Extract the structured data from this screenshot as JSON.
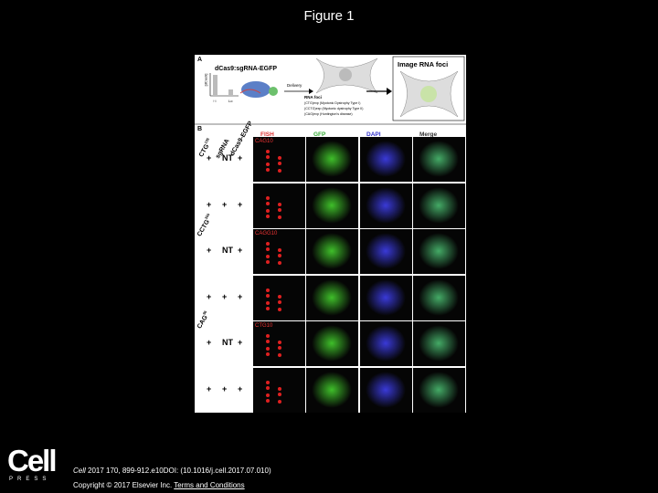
{
  "header": {
    "title": "Figure 1"
  },
  "figure": {
    "panel_a": {
      "label": "A",
      "construct": "dCas9:sgRNA-EGFP",
      "axis_label": "[dCas9]",
      "bars": [
        "Hi",
        "Lo"
      ],
      "delivery": "Delivery",
      "foci": {
        "title": "RNA foci",
        "items": [
          "(CTG)exp (Myotonic Dystrophy Type I)",
          "(CCTG)exp (Myotonic dystrophy Type II)",
          "(CAG)exp (Huntington's disease)"
        ]
      },
      "result": "Image RNA foci"
    },
    "panel_b": {
      "label": "B",
      "columns": [
        "FISH",
        "GFP",
        "DAPI",
        "Merge"
      ],
      "row_headers": [
        "sgRNA",
        "dCas9-EGFP"
      ],
      "groups": [
        {
          "target": "CTG",
          "sup": "105",
          "probe": "CAG10",
          "rows": [
            [
              "+",
              "NT",
              "+"
            ],
            [
              "+",
              "+",
              "+"
            ]
          ]
        },
        {
          "target": "CCTG",
          "sup": "300",
          "probe": "CAGG10",
          "rows": [
            [
              "+",
              "NT",
              "+"
            ],
            [
              "+",
              "+",
              "+"
            ]
          ]
        },
        {
          "target": "CAG",
          "sup": "96",
          "probe": "CTG10",
          "rows": [
            [
              "+",
              "NT",
              "+"
            ],
            [
              "+",
              "+",
              "+"
            ]
          ]
        }
      ]
    }
  },
  "footer": {
    "logo": "Cell",
    "logo_sub": "PRESS",
    "journal": "Cell",
    "citation": "2017 170, 899-912.e10DOI: (10.1016/j.cell.2017.07.010)",
    "copyright": "Copyright © 2017 Elsevier Inc.",
    "terms": "Terms and Conditions"
  }
}
